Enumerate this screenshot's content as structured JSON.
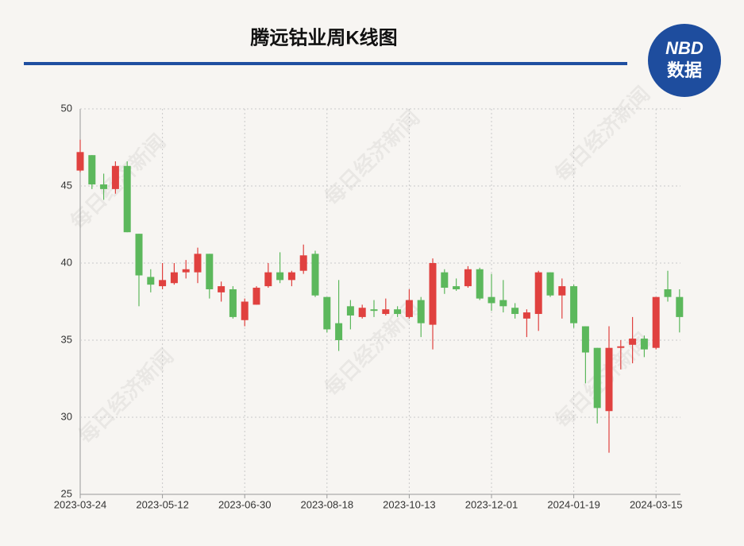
{
  "chart_data": {
    "type": "candlestick",
    "title": "腾远钴业周K线图",
    "logo": [
      "NBD",
      "数据"
    ],
    "watermark": "每日经济新闻",
    "categories": [
      "2023-03-24",
      null,
      null,
      null,
      null,
      null,
      null,
      "2023-05-12",
      null,
      null,
      null,
      null,
      null,
      null,
      "2023-06-30",
      null,
      null,
      null,
      null,
      null,
      null,
      "2023-08-18",
      null,
      null,
      null,
      null,
      null,
      null,
      "2023-10-13",
      null,
      null,
      null,
      null,
      null,
      null,
      "2023-12-01",
      null,
      null,
      null,
      null,
      null,
      null,
      "2024-01-19",
      null,
      null,
      null,
      null,
      null,
      null,
      "2024-03-15",
      null,
      null
    ],
    "open": [
      46.0,
      47.0,
      45.1,
      44.8,
      46.3,
      41.9,
      39.1,
      38.5,
      38.7,
      39.4,
      39.4,
      40.6,
      38.1,
      38.3,
      36.3,
      37.3,
      38.5,
      39.4,
      38.9,
      39.5,
      40.6,
      37.8,
      36.1,
      37.2,
      36.5,
      37.0,
      36.7,
      37.0,
      36.5,
      37.6,
      36.0,
      39.4,
      38.5,
      38.5,
      39.6,
      37.8,
      37.6,
      37.1,
      36.4,
      36.7,
      39.4,
      37.9,
      38.5,
      35.9,
      34.5,
      30.4,
      34.5,
      34.7,
      35.1,
      34.5,
      38.3,
      37.8
    ],
    "high": [
      48.0,
      47.0,
      45.8,
      46.6,
      46.6,
      41.9,
      39.6,
      40.0,
      40.0,
      40.2,
      41.0,
      40.6,
      38.8,
      38.5,
      37.7,
      38.5,
      40.0,
      40.7,
      39.5,
      41.2,
      40.8,
      37.8,
      38.9,
      37.6,
      37.3,
      37.6,
      37.7,
      37.2,
      38.3,
      37.8,
      40.3,
      39.6,
      39.0,
      39.8,
      39.7,
      39.3,
      38.9,
      37.4,
      37.0,
      39.5,
      39.4,
      39.0,
      38.6,
      35.9,
      34.5,
      35.9,
      35.0,
      36.5,
      35.3,
      37.8,
      39.5,
      38.3
    ],
    "low": [
      45.9,
      44.8,
      44.1,
      44.5,
      42.0,
      37.2,
      38.1,
      38.3,
      38.6,
      39.0,
      38.7,
      37.7,
      37.5,
      36.4,
      35.9,
      37.3,
      38.4,
      38.7,
      38.5,
      39.3,
      37.8,
      35.5,
      34.3,
      35.7,
      36.4,
      36.5,
      36.6,
      36.5,
      36.4,
      35.2,
      34.4,
      38.0,
      38.2,
      38.4,
      37.6,
      36.9,
      36.8,
      36.4,
      35.2,
      35.6,
      37.8,
      36.4,
      35.8,
      32.2,
      29.6,
      27.7,
      33.1,
      33.5,
      33.9,
      34.4,
      37.5,
      35.5
    ],
    "close": [
      47.2,
      45.1,
      44.8,
      46.3,
      42.0,
      39.2,
      38.6,
      38.9,
      39.4,
      39.6,
      40.6,
      38.3,
      38.5,
      36.5,
      37.5,
      38.4,
      39.4,
      38.9,
      39.4,
      40.5,
      37.9,
      35.7,
      35.0,
      36.6,
      37.1,
      36.9,
      37.0,
      36.7,
      37.6,
      36.1,
      40.0,
      38.4,
      38.3,
      39.6,
      37.7,
      37.4,
      37.2,
      36.7,
      36.8,
      39.4,
      37.9,
      38.5,
      36.1,
      34.2,
      30.6,
      34.5,
      34.6,
      35.1,
      34.4,
      37.8,
      37.8,
      36.5
    ],
    "up_color": "#e0413f",
    "down_color": "#5cb85c",
    "ylim": [
      25,
      50
    ],
    "yticks": [
      25,
      30,
      35,
      40,
      45,
      50
    ],
    "grid": true
  }
}
